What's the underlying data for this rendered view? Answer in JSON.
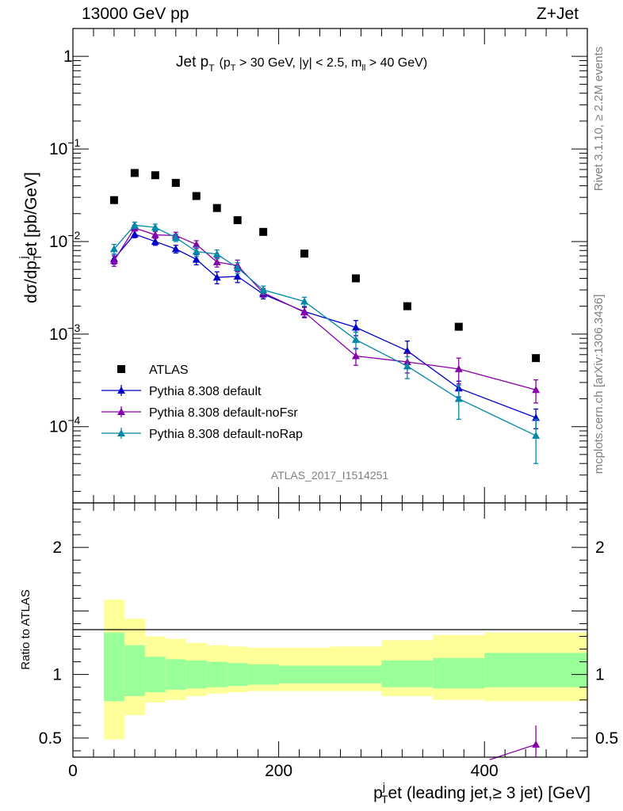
{
  "header": {
    "left": "13000 GeV pp",
    "right": "Z+Jet"
  },
  "side_text": {
    "rivet": "Rivet 3.1.10, ≥ 2.2M events",
    "mcplots": "mcplots.cern.ch [arXiv:1306.3436]"
  },
  "watermark": "ATLAS_2017_I1514251",
  "plot_title": {
    "main": "Jet p",
    "main_sub": "T",
    "cond_a": "(p",
    "cond_a_sub": "T",
    "cond_b": " > 30 GeV, |y| < 2.5, m",
    "cond_b_sub": "ll",
    "cond_c": " > 40 GeV)"
  },
  "y_label": {
    "a": "dσ/dp",
    "a_sub": "T",
    "a_sup": "j",
    "b": "et [pb/GeV]"
  },
  "ratio_y_label": "Ratio to ATLAS",
  "x_label": {
    "a": "p",
    "a_sup": "j",
    "a_sub": "T",
    "b": "et (leading jet,≥ 3 jet) [GeV]"
  },
  "main_y_ticks": [
    {
      "value": 1,
      "label": "1"
    },
    {
      "value": 0.1,
      "label": "10",
      "exp": "−1"
    },
    {
      "value": 0.01,
      "label": "10",
      "exp": "−2"
    },
    {
      "value": 0.001,
      "label": "10",
      "exp": "−3"
    },
    {
      "value": 0.0001,
      "label": "10",
      "exp": "−4"
    }
  ],
  "ratio_y_ticks": [
    {
      "value": 2,
      "label": "2"
    },
    {
      "value": 1,
      "label": "1"
    },
    {
      "value": 0.5,
      "label": "0.5"
    }
  ],
  "x_ticks": [
    {
      "value": 0,
      "label": "0"
    },
    {
      "value": 200,
      "label": "200"
    },
    {
      "value": 400,
      "label": "400"
    }
  ],
  "chart_data": {
    "type": "scatter",
    "x_log": false,
    "y_log": true,
    "xlim": [
      0,
      500
    ],
    "ylim": [
      1.5e-05,
      2.0
    ],
    "ratio_ylim": [
      0.35,
      2.35
    ],
    "grid": false,
    "legend_position": "bottom-left",
    "bins": [
      {
        "lo": 30,
        "hi": 50,
        "x": 40
      },
      {
        "lo": 50,
        "hi": 70,
        "x": 60
      },
      {
        "lo": 70,
        "hi": 90,
        "x": 80
      },
      {
        "lo": 90,
        "hi": 110,
        "x": 100
      },
      {
        "lo": 110,
        "hi": 130,
        "x": 120
      },
      {
        "lo": 130,
        "hi": 150,
        "x": 140
      },
      {
        "lo": 150,
        "hi": 170,
        "x": 160
      },
      {
        "lo": 170,
        "hi": 200,
        "x": 185
      },
      {
        "lo": 200,
        "hi": 250,
        "x": 225
      },
      {
        "lo": 250,
        "hi": 300,
        "x": 275
      },
      {
        "lo": 300,
        "hi": 350,
        "x": 325
      },
      {
        "lo": 350,
        "hi": 400,
        "x": 375
      },
      {
        "lo": 400,
        "hi": 500,
        "x": 450
      }
    ],
    "series": [
      {
        "name": "ATLAS",
        "marker": "square",
        "color": "#000000",
        "x": [
          40,
          60,
          80,
          100,
          120,
          140,
          160,
          185,
          225,
          275,
          325,
          375,
          450
        ],
        "y": [
          0.028,
          0.055,
          0.052,
          0.043,
          0.031,
          0.023,
          0.017,
          0.0127,
          0.0074,
          0.004,
          0.002,
          0.0012,
          0.00055
        ]
      },
      {
        "name": "Pythia 8.308 default",
        "marker": "triangle",
        "color": "#0000cc",
        "x": [
          40,
          60,
          80,
          100,
          120,
          140,
          160,
          185,
          225,
          275,
          325,
          375,
          450
        ],
        "y": [
          0.0065,
          0.012,
          0.01,
          0.0083,
          0.0064,
          0.0041,
          0.0042,
          0.0027,
          0.00175,
          0.00118,
          0.00066,
          0.00026,
          0.000125
        ],
        "err": [
          0.0008,
          0.001,
          0.0009,
          0.0008,
          0.0008,
          0.0006,
          0.0006,
          0.0003,
          0.00022,
          0.00022,
          0.00018,
          5e-05,
          3e-05
        ]
      },
      {
        "name": "Pythia 8.308 default-noFsr",
        "marker": "triangle",
        "color": "#8800aa",
        "x": [
          40,
          60,
          80,
          100,
          120,
          140,
          160,
          185,
          225,
          275,
          325,
          375,
          450
        ],
        "y": [
          0.0062,
          0.014,
          0.0118,
          0.0116,
          0.0093,
          0.006,
          0.0055,
          0.0028,
          0.00172,
          0.00058,
          0.0005,
          0.00042,
          0.00025
        ],
        "err": [
          0.0008,
          0.001,
          0.001,
          0.001,
          0.0009,
          0.0007,
          0.0008,
          0.0003,
          0.00022,
          0.00012,
          0.00012,
          0.00013,
          7e-05
        ]
      },
      {
        "name": "Pythia 8.308 default-noRap",
        "marker": "triangle",
        "color": "#0088aa",
        "x": [
          40,
          60,
          80,
          100,
          120,
          140,
          160,
          185,
          225,
          275,
          325,
          375,
          450
        ],
        "y": [
          0.0083,
          0.015,
          0.0142,
          0.011,
          0.0078,
          0.0073,
          0.0052,
          0.003,
          0.00225,
          0.00087,
          0.00045,
          0.0002,
          8e-05
        ],
        "err": [
          0.001,
          0.0012,
          0.0012,
          0.001,
          0.0009,
          0.0008,
          0.0007,
          0.0003,
          0.00025,
          0.00018,
          0.00012,
          8e-05,
          4e-05
        ]
      }
    ],
    "ratio_bands": {
      "inner_color": "#99ff99",
      "outer_color": "#ffff99",
      "inner_lo": [
        0.79,
        0.83,
        0.86,
        0.88,
        0.89,
        0.9,
        0.91,
        0.92,
        0.93,
        0.93,
        0.9,
        0.89,
        0.9
      ],
      "inner_hi": [
        1.33,
        1.23,
        1.14,
        1.12,
        1.11,
        1.1,
        1.09,
        1.08,
        1.07,
        1.07,
        1.11,
        1.13,
        1.17
      ],
      "outer_lo": [
        0.49,
        0.68,
        0.78,
        0.8,
        0.83,
        0.85,
        0.86,
        0.87,
        0.87,
        0.87,
        0.83,
        0.8,
        0.79
      ],
      "outer_hi": [
        1.59,
        1.44,
        1.3,
        1.28,
        1.25,
        1.23,
        1.22,
        1.21,
        1.21,
        1.22,
        1.27,
        1.31,
        1.33
      ]
    },
    "ratio_visible_points": [
      {
        "series": "Pythia 8.308 default-noFsr",
        "x": 450,
        "y": 0.45,
        "err_hi": 0.15,
        "segment_from": {
          "x": 405,
          "y": 0.33
        }
      }
    ]
  }
}
